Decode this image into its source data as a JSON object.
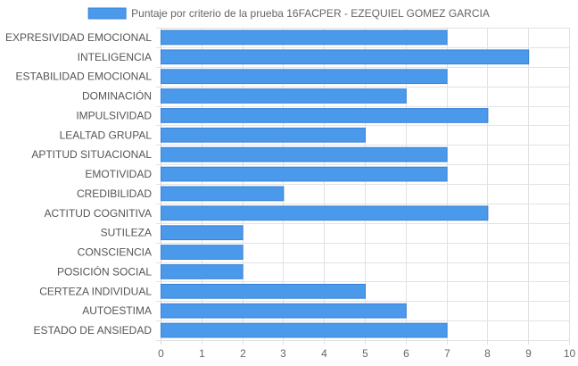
{
  "chart_data": {
    "type": "bar",
    "orientation": "horizontal",
    "legend": {
      "label": "Puntaje por criterio de la prueba 16FACPER - EZEQUIEL GOMEZ GARCIA",
      "position": "top-center"
    },
    "categories": [
      "EXPRESIVIDAD EMOCIONAL",
      "INTELIGENCIA",
      "ESTABILIDAD EMOCIONAL",
      "DOMINACIÓN",
      "IMPULSIVIDAD",
      "LEALTAD GRUPAL",
      "APTITUD SITUACIONAL",
      "EMOTIVIDAD",
      "CREDIBILIDAD",
      "ACTITUD COGNITIVA",
      "SUTILEZA",
      "CONSCIENCIA",
      "POSICIÓN SOCIAL",
      "CERTEZA INDIVIDUAL",
      "AUTOESTIMA",
      "ESTADO DE ANSIEDAD"
    ],
    "series": [
      {
        "name": "Puntaje por criterio de la prueba 16FACPER - EZEQUIEL GOMEZ GARCIA",
        "values": [
          7,
          9,
          7,
          6,
          8,
          5,
          7,
          7,
          3,
          8,
          2,
          2,
          2,
          5,
          6,
          7
        ]
      }
    ],
    "xlim": [
      0,
      10
    ],
    "x_ticks": [
      "0",
      "1",
      "2",
      "3",
      "4",
      "5",
      "6",
      "7",
      "8",
      "9",
      "10"
    ],
    "grid": true,
    "colors": {
      "bar_fill": "#4a99ea",
      "bar_border": "#3b82d6"
    }
  }
}
